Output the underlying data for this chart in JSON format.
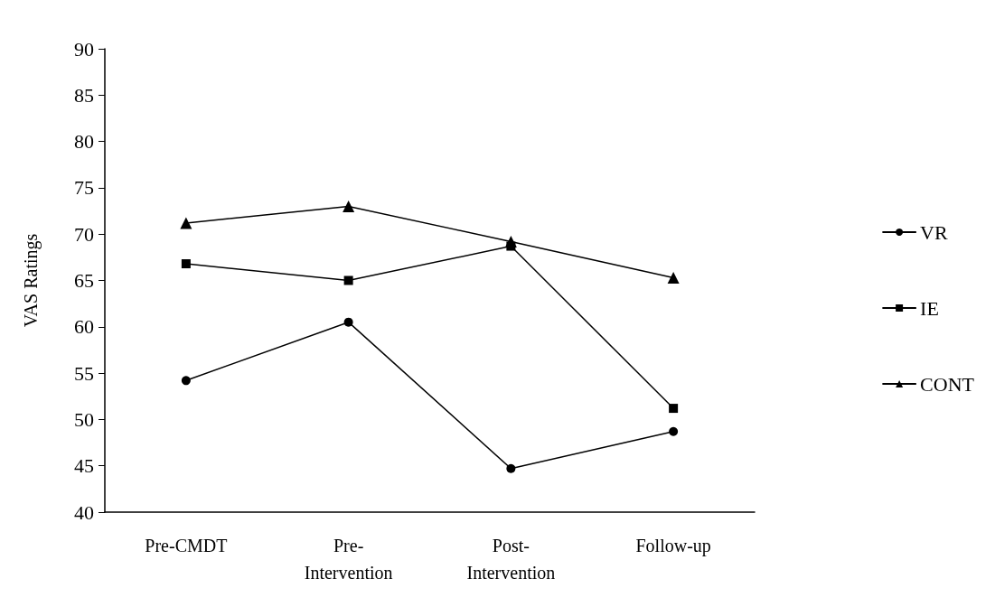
{
  "chart_data": {
    "type": "line",
    "ylabel": "VAS Ratings",
    "categories": [
      "Pre-CMDT",
      "Pre-Intervention",
      "Post-Intervention",
      "Follow-up"
    ],
    "series": [
      {
        "name": "VR",
        "color": "#000000",
        "marker": "circle",
        "values": [
          54.2,
          60.5,
          44.7,
          48.7
        ]
      },
      {
        "name": "IE",
        "color": "#000000",
        "marker": "square",
        "values": [
          66.8,
          65.0,
          68.7,
          51.2
        ]
      },
      {
        "name": "CONT",
        "color": "#000000",
        "marker": "triangle",
        "values": [
          71.2,
          73.0,
          69.2,
          65.3
        ]
      }
    ],
    "ylim": [
      40,
      90
    ],
    "yticks": [
      40,
      45,
      50,
      55,
      60,
      65,
      70,
      75,
      80,
      85,
      90
    ],
    "grid": false,
    "legend": "right",
    "line_style": "solid"
  }
}
